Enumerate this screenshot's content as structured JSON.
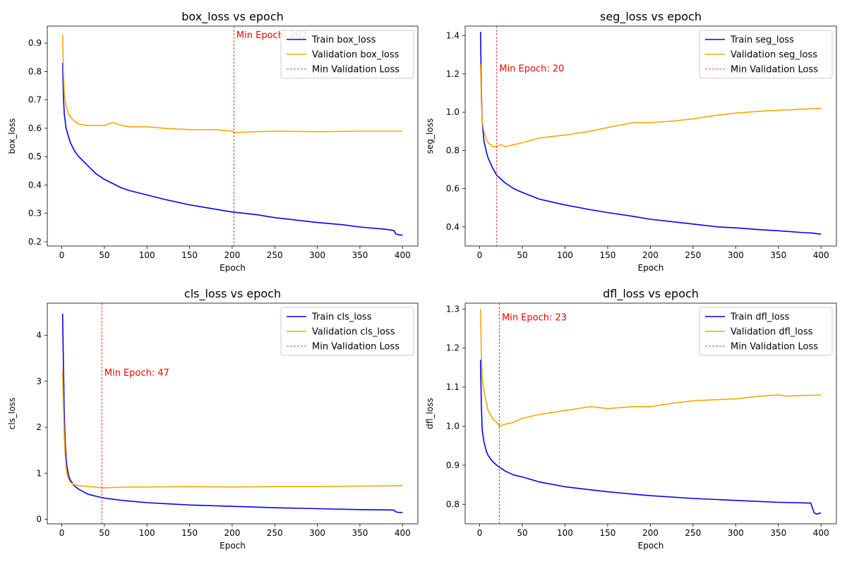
{
  "chart_data": [
    {
      "type": "line",
      "title": "box_loss vs epoch",
      "xlabel": "Epoch",
      "ylabel": "box_loss",
      "xlim": [
        -17,
        418
      ],
      "ylim": [
        0.185,
        0.96
      ],
      "xticks": [
        0,
        50,
        100,
        150,
        200,
        250,
        300,
        350,
        400
      ],
      "yticks": [
        0.2,
        0.3,
        0.4,
        0.5,
        0.6,
        0.7,
        0.8,
        0.9
      ],
      "legend_position": "top-right",
      "min_epoch": 202,
      "min_label": "Min Epoch: 202",
      "min_label_pos": [
        205,
        0.93
      ],
      "legend": [
        "Train box_loss",
        "Validation box_loss",
        "Min Validation Loss"
      ],
      "series": [
        {
          "name": "Train box_loss",
          "color": "#0000ff",
          "x": [
            1,
            2,
            3,
            5,
            8,
            10,
            15,
            20,
            30,
            40,
            50,
            60,
            70,
            80,
            100,
            120,
            150,
            180,
            200,
            230,
            250,
            280,
            300,
            330,
            350,
            380,
            390,
            392,
            395,
            400
          ],
          "y": [
            0.83,
            0.71,
            0.65,
            0.6,
            0.57,
            0.55,
            0.52,
            0.5,
            0.47,
            0.44,
            0.42,
            0.405,
            0.39,
            0.38,
            0.365,
            0.35,
            0.33,
            0.315,
            0.305,
            0.295,
            0.285,
            0.275,
            0.268,
            0.26,
            0.252,
            0.244,
            0.24,
            0.228,
            0.225,
            0.223
          ]
        },
        {
          "name": "Validation box_loss",
          "color": "#ffa500",
          "x": [
            1,
            2,
            3,
            5,
            8,
            10,
            15,
            20,
            30,
            40,
            50,
            60,
            70,
            80,
            100,
            120,
            150,
            180,
            200,
            202,
            220,
            250,
            300,
            350,
            400
          ],
          "y": [
            0.93,
            0.8,
            0.72,
            0.68,
            0.65,
            0.64,
            0.625,
            0.615,
            0.61,
            0.61,
            0.61,
            0.62,
            0.61,
            0.605,
            0.605,
            0.6,
            0.595,
            0.595,
            0.59,
            0.585,
            0.587,
            0.59,
            0.588,
            0.59,
            0.59
          ]
        }
      ]
    },
    {
      "type": "line",
      "title": "seg_loss vs epoch",
      "xlabel": "Epoch",
      "ylabel": "seg_loss",
      "xlim": [
        -17,
        418
      ],
      "ylim": [
        0.3,
        1.45
      ],
      "xticks": [
        0,
        50,
        100,
        150,
        200,
        250,
        300,
        350,
        400
      ],
      "yticks": [
        0.4,
        0.6,
        0.8,
        1.0,
        1.2,
        1.4
      ],
      "legend_position": "top-right",
      "min_epoch": 20,
      "min_label": "Min Epoch: 20",
      "min_label_pos": [
        23,
        1.23
      ],
      "legend": [
        "Train seg_loss",
        "Validation seg_loss",
        "Min Validation Loss"
      ],
      "series": [
        {
          "name": "Train seg_loss",
          "color": "#0000ff",
          "x": [
            1,
            2,
            3,
            5,
            8,
            10,
            15,
            20,
            30,
            40,
            50,
            70,
            100,
            130,
            150,
            180,
            200,
            230,
            250,
            280,
            300,
            330,
            350,
            380,
            390,
            395,
            400
          ],
          "y": [
            1.42,
            1.1,
            0.95,
            0.85,
            0.79,
            0.76,
            0.71,
            0.67,
            0.63,
            0.6,
            0.58,
            0.545,
            0.515,
            0.49,
            0.475,
            0.455,
            0.44,
            0.425,
            0.415,
            0.4,
            0.395,
            0.385,
            0.38,
            0.37,
            0.368,
            0.365,
            0.362
          ]
        },
        {
          "name": "Validation seg_loss",
          "color": "#ffa500",
          "x": [
            1,
            2,
            3,
            5,
            8,
            10,
            15,
            20,
            25,
            30,
            40,
            50,
            70,
            100,
            130,
            150,
            180,
            200,
            230,
            250,
            280,
            300,
            330,
            350,
            400
          ],
          "y": [
            1.25,
            1.05,
            0.95,
            0.9,
            0.86,
            0.84,
            0.82,
            0.82,
            0.83,
            0.82,
            0.83,
            0.84,
            0.865,
            0.88,
            0.9,
            0.92,
            0.945,
            0.945,
            0.955,
            0.965,
            0.985,
            0.995,
            1.005,
            1.01,
            1.02
          ]
        }
      ]
    },
    {
      "type": "line",
      "title": "cls_loss vs epoch",
      "xlabel": "Epoch",
      "ylabel": "cls_loss",
      "xlim": [
        -17,
        418
      ],
      "ylim": [
        -0.1,
        4.7
      ],
      "xticks": [
        0,
        50,
        100,
        150,
        200,
        250,
        300,
        350,
        400
      ],
      "yticks": [
        0,
        1,
        2,
        3,
        4
      ],
      "legend_position": "top-right",
      "min_epoch": 47,
      "min_label": "Min Epoch: 47",
      "min_label_pos": [
        50,
        3.2
      ],
      "legend": [
        "Train cls_loss",
        "Validation cls_loss",
        "Min Validation Loss"
      ],
      "series": [
        {
          "name": "Train cls_loss",
          "color": "#0000ff",
          "x": [
            1,
            2,
            3,
            4,
            5,
            6,
            8,
            10,
            15,
            20,
            30,
            40,
            50,
            70,
            100,
            150,
            200,
            250,
            300,
            350,
            390,
            392,
            395,
            400
          ],
          "y": [
            4.47,
            3.3,
            2.3,
            1.7,
            1.35,
            1.15,
            0.95,
            0.85,
            0.72,
            0.65,
            0.55,
            0.5,
            0.46,
            0.41,
            0.36,
            0.31,
            0.28,
            0.25,
            0.23,
            0.21,
            0.2,
            0.16,
            0.15,
            0.145
          ]
        },
        {
          "name": "Validation cls_loss",
          "color": "#ffa500",
          "x": [
            1,
            2,
            3,
            4,
            5,
            6,
            8,
            10,
            15,
            20,
            30,
            40,
            47,
            60,
            80,
            100,
            150,
            200,
            250,
            300,
            350,
            400
          ],
          "y": [
            3.23,
            2.4,
            1.8,
            1.4,
            1.15,
            1.0,
            0.87,
            0.8,
            0.75,
            0.73,
            0.71,
            0.7,
            0.68,
            0.69,
            0.7,
            0.7,
            0.71,
            0.7,
            0.71,
            0.71,
            0.72,
            0.73
          ]
        }
      ]
    },
    {
      "type": "line",
      "title": "dfl_loss vs epoch",
      "xlabel": "Epoch",
      "ylabel": "dfl_loss",
      "xlim": [
        -17,
        418
      ],
      "ylim": [
        0.75,
        1.315
      ],
      "xticks": [
        0,
        50,
        100,
        150,
        200,
        250,
        300,
        350,
        400
      ],
      "yticks": [
        0.8,
        0.9,
        1.0,
        1.1,
        1.2,
        1.3
      ],
      "legend_position": "top-right",
      "min_epoch": 23,
      "min_label": "Min Epoch: 23",
      "min_label_pos": [
        26,
        1.28
      ],
      "legend": [
        "Train dfl_loss",
        "Validation dfl_loss",
        "Min Validation Loss"
      ],
      "series": [
        {
          "name": "Train dfl_loss",
          "color": "#0000ff",
          "x": [
            1,
            2,
            3,
            5,
            8,
            10,
            15,
            20,
            30,
            40,
            50,
            70,
            100,
            130,
            150,
            180,
            200,
            250,
            300,
            350,
            388,
            390,
            392,
            395,
            400
          ],
          "y": [
            1.17,
            1.05,
            0.99,
            0.96,
            0.935,
            0.925,
            0.91,
            0.9,
            0.885,
            0.875,
            0.87,
            0.857,
            0.845,
            0.837,
            0.832,
            0.826,
            0.822,
            0.815,
            0.81,
            0.805,
            0.803,
            0.79,
            0.778,
            0.775,
            0.778
          ]
        },
        {
          "name": "Validation dfl_loss",
          "color": "#ffa500",
          "x": [
            1,
            2,
            3,
            5,
            8,
            10,
            15,
            20,
            23,
            30,
            40,
            50,
            70,
            100,
            130,
            150,
            180,
            200,
            230,
            250,
            280,
            300,
            330,
            350,
            360,
            400
          ],
          "y": [
            1.3,
            1.18,
            1.12,
            1.09,
            1.06,
            1.04,
            1.02,
            1.01,
            1.0,
            1.005,
            1.01,
            1.02,
            1.03,
            1.04,
            1.05,
            1.045,
            1.05,
            1.05,
            1.06,
            1.065,
            1.068,
            1.07,
            1.077,
            1.08,
            1.077,
            1.08
          ]
        }
      ]
    }
  ]
}
